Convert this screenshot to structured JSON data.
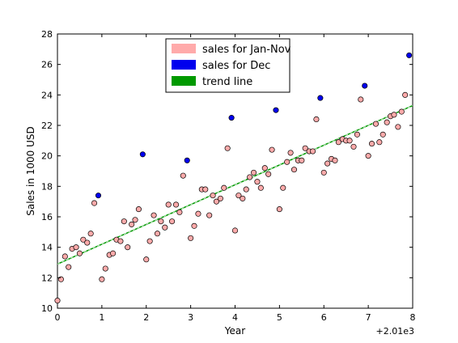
{
  "chart_data": {
    "type": "scatter",
    "xlabel": "Year",
    "ylabel": "Sales in 1000 USD",
    "x_offset_label": "+2.01e3",
    "xlim": [
      0,
      8
    ],
    "ylim": [
      10,
      28
    ],
    "x_ticks": [
      "0",
      "1",
      "2",
      "3",
      "4",
      "5",
      "6",
      "7",
      "8"
    ],
    "y_ticks": [
      "10",
      "12",
      "14",
      "16",
      "18",
      "20",
      "22",
      "24",
      "26",
      "28"
    ],
    "grid": false,
    "legend_position": "top-center",
    "series": [
      {
        "name": "sales for Jan-Nov",
        "color": "#ffaaaa",
        "edge": "#000000",
        "points": [
          [
            0.0,
            10.5
          ],
          [
            0.08,
            11.9
          ],
          [
            0.17,
            13.4
          ],
          [
            0.25,
            12.7
          ],
          [
            0.33,
            13.9
          ],
          [
            0.42,
            14.0
          ],
          [
            0.5,
            13.6
          ],
          [
            0.58,
            14.5
          ],
          [
            0.67,
            14.3
          ],
          [
            0.75,
            14.9
          ],
          [
            0.83,
            16.9
          ],
          [
            1.0,
            11.9
          ],
          [
            1.08,
            12.6
          ],
          [
            1.17,
            13.5
          ],
          [
            1.25,
            13.6
          ],
          [
            1.33,
            14.5
          ],
          [
            1.42,
            14.4
          ],
          [
            1.5,
            15.7
          ],
          [
            1.58,
            14.0
          ],
          [
            1.67,
            15.5
          ],
          [
            1.75,
            15.8
          ],
          [
            1.83,
            16.5
          ],
          [
            2.0,
            13.2
          ],
          [
            2.08,
            14.4
          ],
          [
            2.17,
            16.1
          ],
          [
            2.25,
            14.9
          ],
          [
            2.33,
            15.7
          ],
          [
            2.42,
            15.3
          ],
          [
            2.5,
            16.8
          ],
          [
            2.58,
            15.7
          ],
          [
            2.67,
            16.8
          ],
          [
            2.75,
            16.3
          ],
          [
            2.83,
            18.7
          ],
          [
            3.0,
            14.6
          ],
          [
            3.08,
            15.4
          ],
          [
            3.17,
            16.2
          ],
          [
            3.25,
            17.8
          ],
          [
            3.33,
            17.8
          ],
          [
            3.42,
            16.1
          ],
          [
            3.5,
            17.4
          ],
          [
            3.58,
            17.0
          ],
          [
            3.67,
            17.2
          ],
          [
            3.75,
            17.9
          ],
          [
            3.83,
            20.5
          ],
          [
            4.0,
            15.1
          ],
          [
            4.08,
            17.4
          ],
          [
            4.17,
            17.2
          ],
          [
            4.25,
            17.8
          ],
          [
            4.33,
            18.6
          ],
          [
            4.42,
            18.9
          ],
          [
            4.5,
            18.3
          ],
          [
            4.58,
            17.9
          ],
          [
            4.67,
            19.2
          ],
          [
            4.75,
            18.8
          ],
          [
            4.83,
            20.4
          ],
          [
            5.0,
            16.5
          ],
          [
            5.08,
            17.9
          ],
          [
            5.17,
            19.6
          ],
          [
            5.25,
            20.2
          ],
          [
            5.33,
            19.1
          ],
          [
            5.42,
            19.7
          ],
          [
            5.5,
            19.7
          ],
          [
            5.58,
            20.5
          ],
          [
            5.67,
            20.3
          ],
          [
            5.75,
            20.3
          ],
          [
            5.83,
            22.4
          ],
          [
            6.0,
            18.9
          ],
          [
            6.08,
            19.5
          ],
          [
            6.17,
            19.8
          ],
          [
            6.25,
            19.7
          ],
          [
            6.33,
            20.9
          ],
          [
            6.42,
            21.1
          ],
          [
            6.5,
            21.0
          ],
          [
            6.58,
            21.0
          ],
          [
            6.67,
            20.6
          ],
          [
            6.75,
            21.4
          ],
          [
            6.83,
            23.7
          ],
          [
            7.0,
            20.0
          ],
          [
            7.08,
            20.8
          ],
          [
            7.17,
            22.1
          ],
          [
            7.25,
            20.9
          ],
          [
            7.33,
            21.4
          ],
          [
            7.42,
            22.2
          ],
          [
            7.5,
            22.6
          ],
          [
            7.58,
            22.7
          ],
          [
            7.67,
            21.9
          ],
          [
            7.75,
            22.9
          ],
          [
            7.83,
            24.0
          ]
        ]
      },
      {
        "name": "sales for Dec",
        "color": "#0000ee",
        "edge": "#000000",
        "points": [
          [
            0.92,
            17.4
          ],
          [
            1.92,
            20.1
          ],
          [
            2.92,
            19.7
          ],
          [
            3.92,
            22.5
          ],
          [
            4.92,
            23.0
          ],
          [
            5.92,
            23.8
          ],
          [
            6.92,
            24.6
          ],
          [
            7.92,
            26.6
          ]
        ]
      }
    ],
    "trend_line": {
      "name": "trend line",
      "color": "#009900",
      "style": "dashed",
      "start": [
        0,
        12.9
      ],
      "end": [
        8,
        23.3
      ]
    }
  }
}
